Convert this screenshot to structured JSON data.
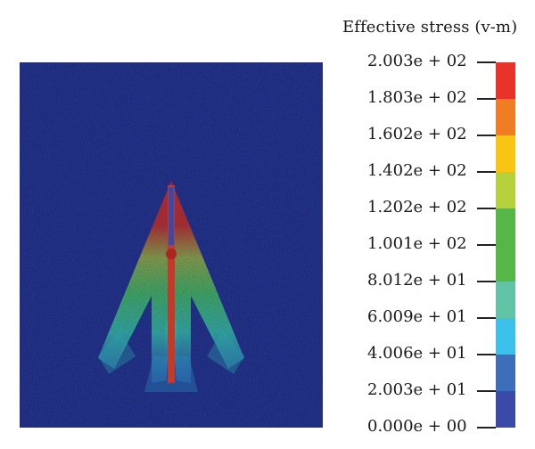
{
  "legend": {
    "title": "Effective stress (v-m)",
    "ticks": [
      "2.003e + 02",
      "1.803e + 02",
      "1.602e + 02",
      "1.402e + 02",
      "1.202e + 02",
      "1.001e + 02",
      "8.012e + 01",
      "6.009e + 01",
      "4.006e + 01",
      "2.003e + 01",
      "0.000e + 00"
    ],
    "band_colors": [
      "#e8322a",
      "#f07d23",
      "#f9c413",
      "#b5d13d",
      "#56b748",
      "#56b748",
      "#62c3a6",
      "#3cc1ea",
      "#3e6dba",
      "#3b4aa8"
    ]
  },
  "colors": {
    "background_particles": "#1c2a7f",
    "pile_shaft": "#c23a2c",
    "pile_core": "#3b4aa8"
  }
}
